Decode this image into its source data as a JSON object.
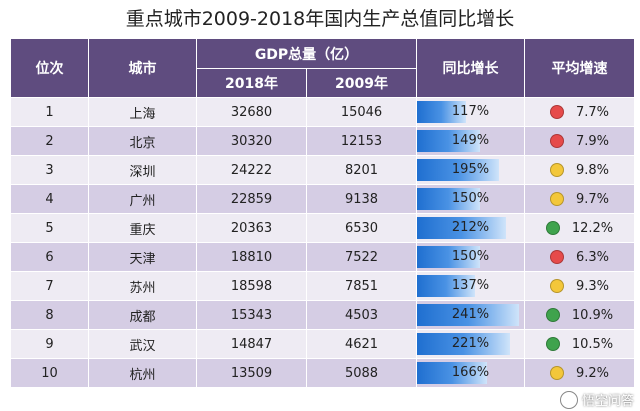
{
  "title": "重点城市2009-2018年国内生产总值同比增长",
  "header": {
    "rank": "位次",
    "city": "城市",
    "gdp_group": "GDP总量（亿）",
    "y2018": "2018年",
    "y2009": "2009年",
    "growth": "同比增长",
    "avg": "平均增速"
  },
  "colors": {
    "header_bg": "#5f4c7f",
    "row_light": "#eeebf3",
    "row_dark": "#d5cde4",
    "bar_blue": "#1f6fd0",
    "dot_red": "#e64a4a",
    "dot_yellow": "#f3c73a",
    "dot_green": "#3fa34d"
  },
  "rows": [
    {
      "rank": "1",
      "city": "上海",
      "gdp2018": "32680",
      "gdp2009": "15046",
      "growth": "117%",
      "growth_value": 117,
      "avg": "7.7%",
      "status": "red"
    },
    {
      "rank": "2",
      "city": "北京",
      "gdp2018": "30320",
      "gdp2009": "12153",
      "growth": "149%",
      "growth_value": 149,
      "avg": "7.9%",
      "status": "red"
    },
    {
      "rank": "3",
      "city": "深圳",
      "gdp2018": "24222",
      "gdp2009": "8201",
      "growth": "195%",
      "growth_value": 195,
      "avg": "9.8%",
      "status": "yellow"
    },
    {
      "rank": "4",
      "city": "广州",
      "gdp2018": "22859",
      "gdp2009": "9138",
      "growth": "150%",
      "growth_value": 150,
      "avg": "9.7%",
      "status": "yellow"
    },
    {
      "rank": "5",
      "city": "重庆",
      "gdp2018": "20363",
      "gdp2009": "6530",
      "growth": "212%",
      "growth_value": 212,
      "avg": "12.2%",
      "status": "green"
    },
    {
      "rank": "6",
      "city": "天津",
      "gdp2018": "18810",
      "gdp2009": "7522",
      "growth": "150%",
      "growth_value": 150,
      "avg": "6.3%",
      "status": "red"
    },
    {
      "rank": "7",
      "city": "苏州",
      "gdp2018": "18598",
      "gdp2009": "7851",
      "growth": "137%",
      "growth_value": 137,
      "avg": "9.3%",
      "status": "yellow"
    },
    {
      "rank": "8",
      "city": "成都",
      "gdp2018": "15343",
      "gdp2009": "4503",
      "growth": "241%",
      "growth_value": 241,
      "avg": "10.9%",
      "status": "green"
    },
    {
      "rank": "9",
      "city": "武汉",
      "gdp2018": "14847",
      "gdp2009": "4621",
      "growth": "221%",
      "growth_value": 221,
      "avg": "10.5%",
      "status": "green"
    },
    {
      "rank": "10",
      "city": "杭州",
      "gdp2018": "13509",
      "gdp2009": "5088",
      "growth": "166%",
      "growth_value": 166,
      "avg": "9.2%",
      "status": "yellow"
    }
  ],
  "growth_max": 241,
  "watermark": "悟空问答"
}
